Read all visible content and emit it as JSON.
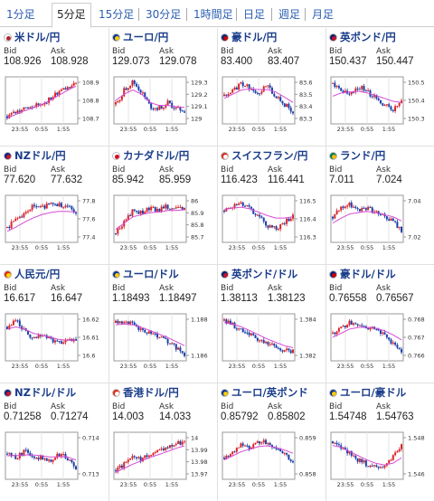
{
  "tabs": [
    {
      "label": "1分足",
      "active": false
    },
    {
      "label": "5分足",
      "active": true
    },
    {
      "label": "15分足",
      "active": false
    },
    {
      "label": "30分足",
      "active": false
    },
    {
      "label": "1時間足",
      "active": false
    },
    {
      "label": "日足",
      "active": false
    },
    {
      "label": "週足",
      "active": false
    },
    {
      "label": "月足",
      "active": false
    }
  ],
  "labels": {
    "bid": "Bid",
    "ask": "Ask"
  },
  "x_ticks": [
    "23:55",
    "0:55",
    "1:55"
  ],
  "cells": [
    {
      "name": "usd-jpy",
      "pair": "米ドル/円",
      "flag": [
        "#ffffff",
        "#b22234"
      ],
      "bid": "108.926",
      "ask": "108.928",
      "ticks": [
        "108.9",
        "108.8",
        "108.7"
      ],
      "trend": [
        0.12,
        0.22,
        0.3,
        0.36,
        0.42,
        0.55,
        0.7,
        0.82,
        0.95
      ],
      "ma": [
        0.08,
        0.16,
        0.25,
        0.32,
        0.4,
        0.5,
        0.62,
        0.74,
        0.84
      ]
    },
    {
      "name": "eur-jpy",
      "pair": "ユーロ/円",
      "flag": [
        "#003399",
        "#ffcc00"
      ],
      "bid": "129.073",
      "ask": "129.078",
      "ticks": [
        "129.3",
        "129.2",
        "129.1",
        "129"
      ],
      "trend": [
        0.4,
        0.75,
        0.95,
        0.7,
        0.35,
        0.3,
        0.45,
        0.3,
        0.25
      ],
      "ma": [
        0.5,
        0.65,
        0.75,
        0.65,
        0.45,
        0.38,
        0.38,
        0.35,
        0.33
      ]
    },
    {
      "name": "aud-jpy",
      "pair": "豪ドル/円",
      "flag": [
        "#00247d",
        "#cc0000"
      ],
      "bid": "83.400",
      "ask": "83.407",
      "ticks": [
        "83.6",
        "83.5",
        "83.4",
        "83.3"
      ],
      "trend": [
        0.6,
        0.75,
        0.9,
        0.8,
        0.7,
        0.85,
        0.6,
        0.4,
        0.25
      ],
      "ma": [
        0.55,
        0.65,
        0.75,
        0.78,
        0.76,
        0.76,
        0.7,
        0.58,
        0.45
      ]
    },
    {
      "name": "gbp-jpy",
      "pair": "英ポンド/円",
      "flag": [
        "#012169",
        "#c8102e"
      ],
      "bid": "150.437",
      "ask": "150.447",
      "ticks": [
        "150.5",
        "150.4",
        "150.3"
      ],
      "trend": [
        0.9,
        0.75,
        0.6,
        0.85,
        0.7,
        0.55,
        0.4,
        0.25,
        0.45
      ],
      "ma": [
        0.6,
        0.68,
        0.7,
        0.72,
        0.68,
        0.62,
        0.55,
        0.48,
        0.45
      ]
    },
    {
      "name": "nzd-jpy",
      "pair": "NZドル/円",
      "flag": [
        "#00247d",
        "#cc142b"
      ],
      "bid": "77.620",
      "ask": "77.632",
      "ticks": [
        "77.8",
        "77.6",
        "77.4"
      ],
      "trend": [
        0.3,
        0.45,
        0.6,
        0.8,
        0.75,
        0.9,
        0.85,
        0.8,
        0.6
      ],
      "ma": [
        0.2,
        0.3,
        0.42,
        0.52,
        0.6,
        0.65,
        0.68,
        0.68,
        0.66
      ]
    },
    {
      "name": "cad-jpy",
      "pair": "カナダドル/円",
      "flag": [
        "#ffffff",
        "#d80621"
      ],
      "bid": "85.942",
      "ask": "85.959",
      "ticks": [
        "86",
        "85.9",
        "85.8",
        "85.7"
      ],
      "trend": [
        0.15,
        0.45,
        0.7,
        0.65,
        0.75,
        0.7,
        0.8,
        0.72,
        0.75
      ],
      "ma": [
        0.25,
        0.4,
        0.55,
        0.6,
        0.65,
        0.66,
        0.7,
        0.7,
        0.72
      ]
    },
    {
      "name": "chf-jpy",
      "pair": "スイスフラン/円",
      "flag": [
        "#d52b1e",
        "#ffffff"
      ],
      "bid": "116.423",
      "ask": "116.441",
      "ticks": [
        "116.5",
        "116.4",
        "116.3"
      ],
      "trend": [
        0.7,
        0.8,
        0.85,
        0.75,
        0.55,
        0.35,
        0.25,
        0.4,
        0.6
      ],
      "ma": [
        0.72,
        0.76,
        0.78,
        0.74,
        0.66,
        0.58,
        0.52,
        0.52,
        0.55
      ]
    },
    {
      "name": "zar-jpy",
      "pair": "ランド/円",
      "flag": [
        "#007a4d",
        "#ffb612"
      ],
      "bid": "7.011",
      "ask": "7.024",
      "ticks": [
        "7.04",
        "7.02"
      ],
      "trend": [
        0.55,
        0.75,
        0.85,
        0.7,
        0.78,
        0.65,
        0.55,
        0.45,
        0.2
      ],
      "ma": [
        0.4,
        0.52,
        0.62,
        0.65,
        0.68,
        0.65,
        0.6,
        0.55,
        0.45
      ]
    },
    {
      "name": "cny-jpy",
      "pair": "人民元/円",
      "flag": [
        "#de2910",
        "#ffde00"
      ],
      "bid": "16.617",
      "ask": "16.647",
      "ticks": [
        "16.62",
        "16.61",
        "16.6"
      ],
      "trend": [
        0.75,
        0.9,
        0.65,
        0.45,
        0.55,
        0.45,
        0.35,
        0.4,
        0.45
      ],
      "ma": [
        0.7,
        0.75,
        0.7,
        0.6,
        0.55,
        0.5,
        0.45,
        0.43,
        0.43
      ]
    },
    {
      "name": "eur-usd",
      "pair": "ユーロ/ドル",
      "flag": [
        "#003399",
        "#ffcc00"
      ],
      "bid": "1.18493",
      "ask": "1.18497",
      "ticks": [
        "1.188",
        "1.186"
      ],
      "trend": [
        0.85,
        0.9,
        0.8,
        0.7,
        0.6,
        0.5,
        0.4,
        0.25,
        0.1
      ],
      "ma": [
        0.8,
        0.82,
        0.8,
        0.74,
        0.66,
        0.58,
        0.5,
        0.4,
        0.3
      ]
    },
    {
      "name": "gbp-usd",
      "pair": "英ポンド/ドル",
      "flag": [
        "#012169",
        "#c8102e"
      ],
      "bid": "1.38113",
      "ask": "1.38123",
      "ticks": [
        "1.384",
        "1.382"
      ],
      "trend": [
        0.9,
        0.8,
        0.65,
        0.55,
        0.45,
        0.35,
        0.25,
        0.2,
        0.15
      ],
      "ma": [
        0.85,
        0.82,
        0.75,
        0.66,
        0.56,
        0.46,
        0.38,
        0.3,
        0.25
      ]
    },
    {
      "name": "aud-usd",
      "pair": "豪ドル/ドル",
      "flag": [
        "#00247d",
        "#cc0000"
      ],
      "bid": "0.76558",
      "ask": "0.76567",
      "ticks": [
        "0.768",
        "0.767",
        "0.766"
      ],
      "trend": [
        0.6,
        0.75,
        0.85,
        0.8,
        0.7,
        0.75,
        0.55,
        0.35,
        0.1
      ],
      "ma": [
        0.5,
        0.6,
        0.7,
        0.74,
        0.74,
        0.72,
        0.66,
        0.56,
        0.44
      ]
    },
    {
      "name": "nzd-usd",
      "pair": "NZドル/ドル",
      "flag": [
        "#00247d",
        "#cc142b"
      ],
      "bid": "0.71258",
      "ask": "0.71274",
      "ticks": [
        "0.714",
        "0.713"
      ],
      "trend": [
        0.55,
        0.45,
        0.6,
        0.5,
        0.45,
        0.4,
        0.55,
        0.45,
        0.15
      ],
      "ma": [
        0.5,
        0.5,
        0.52,
        0.52,
        0.5,
        0.47,
        0.48,
        0.47,
        0.4
      ]
    },
    {
      "name": "hkd-jpy",
      "pair": "香港ドル/円",
      "flag": [
        "#de2910",
        "#ffffff"
      ],
      "bid": "14.003",
      "ask": "14.033",
      "ticks": [
        "14",
        "13.99",
        "13.98",
        "13.97"
      ],
      "trend": [
        0.15,
        0.3,
        0.45,
        0.4,
        0.55,
        0.6,
        0.7,
        0.8,
        0.85
      ],
      "ma": [
        0.1,
        0.2,
        0.3,
        0.38,
        0.46,
        0.53,
        0.6,
        0.68,
        0.74
      ]
    },
    {
      "name": "eur-gbp",
      "pair": "ユーロ/英ポンド",
      "flag": [
        "#003399",
        "#ffcc00"
      ],
      "bid": "0.85792",
      "ask": "0.85802",
      "ticks": [
        "0.859",
        "0.858"
      ],
      "trend": [
        0.45,
        0.6,
        0.75,
        0.7,
        0.85,
        0.8,
        0.65,
        0.55,
        0.35
      ],
      "ma": [
        0.4,
        0.5,
        0.6,
        0.66,
        0.72,
        0.74,
        0.7,
        0.64,
        0.56
      ]
    },
    {
      "name": "eur-aud",
      "pair": "ユーロ/豪ドル",
      "flag": [
        "#003399",
        "#ffcc00"
      ],
      "bid": "1.54748",
      "ask": "1.54763",
      "ticks": [
        "1.548",
        "1.546"
      ],
      "trend": [
        0.85,
        0.7,
        0.55,
        0.4,
        0.3,
        0.25,
        0.2,
        0.45,
        0.8
      ],
      "ma": [
        0.75,
        0.7,
        0.6,
        0.5,
        0.4,
        0.32,
        0.28,
        0.32,
        0.45
      ]
    }
  ]
}
